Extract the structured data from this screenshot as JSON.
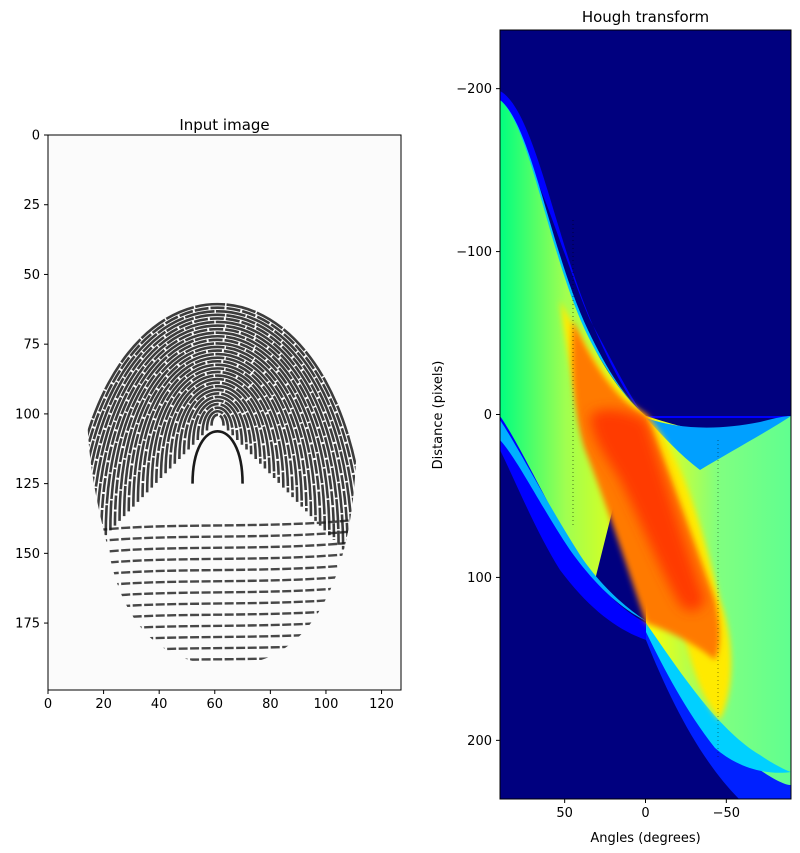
{
  "chart_data": [
    {
      "type": "heatmap",
      "title": "Input image",
      "xlabel": "",
      "ylabel": "",
      "xlim": [
        0,
        127
      ],
      "ylim": [
        199,
        0
      ],
      "xticks": [
        0,
        20,
        40,
        60,
        80,
        100,
        120
      ],
      "yticks": [
        0,
        25,
        50,
        75,
        100,
        125,
        150,
        175
      ],
      "colormap": "gray"
    },
    {
      "type": "heatmap",
      "title": "Hough transform",
      "xlabel": "Angles (degrees)",
      "ylabel": "Distance (pixels)",
      "xlim": [
        90,
        -90
      ],
      "ylim": [
        -236,
        236
      ],
      "xticks": [
        50,
        0,
        -50
      ],
      "yticks": [
        -200,
        -100,
        0,
        100,
        200
      ],
      "colormap": "jet",
      "background_color": "#00007f",
      "peak_color": "#ff3a00"
    }
  ]
}
